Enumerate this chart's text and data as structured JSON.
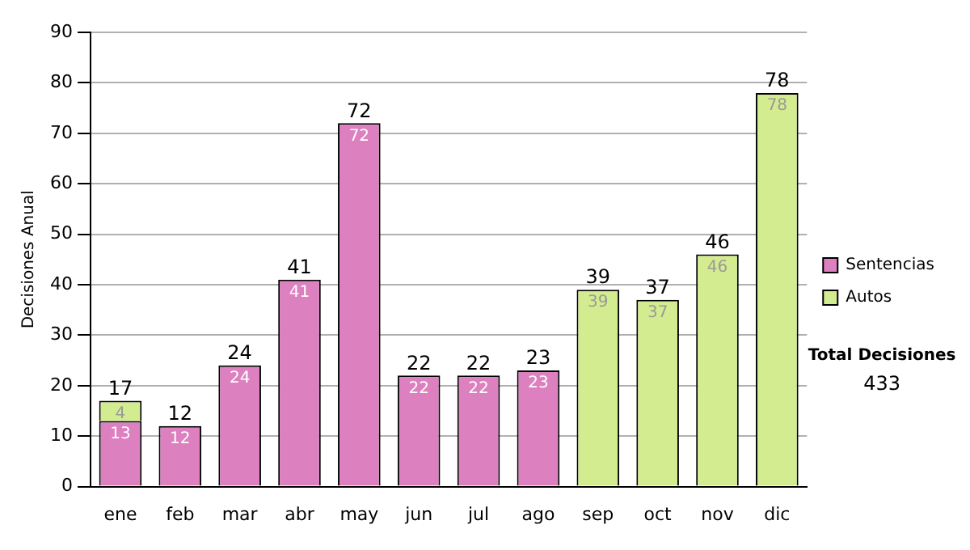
{
  "chart_data": {
    "type": "bar",
    "stacked": true,
    "categories": [
      "ene",
      "feb",
      "mar",
      "abr",
      "may",
      "jun",
      "jul",
      "ago",
      "sep",
      "oct",
      "nov",
      "dic"
    ],
    "series": [
      {
        "name": "Sentencias",
        "color": "#dd80c0",
        "values": [
          13,
          12,
          24,
          41,
          72,
          22,
          22,
          23,
          null,
          null,
          null,
          null
        ]
      },
      {
        "name": "Autos",
        "color": "#d4ec90",
        "values": [
          4,
          null,
          null,
          null,
          null,
          null,
          null,
          null,
          39,
          37,
          46,
          78
        ]
      }
    ],
    "totals": [
      "17",
      "12",
      "24",
      "41",
      "72",
      "22",
      "22",
      "23",
      "39",
      "37",
      "46",
      "78"
    ],
    "ylabel": "Decisiones Anual",
    "ylim": [
      0,
      90
    ],
    "yticks": [
      0,
      10,
      20,
      30,
      40,
      50,
      60,
      70,
      80,
      90
    ],
    "grid": "y",
    "legend": "right",
    "data_labels": true,
    "annotations": [
      "Total Decisiones",
      "433"
    ]
  }
}
